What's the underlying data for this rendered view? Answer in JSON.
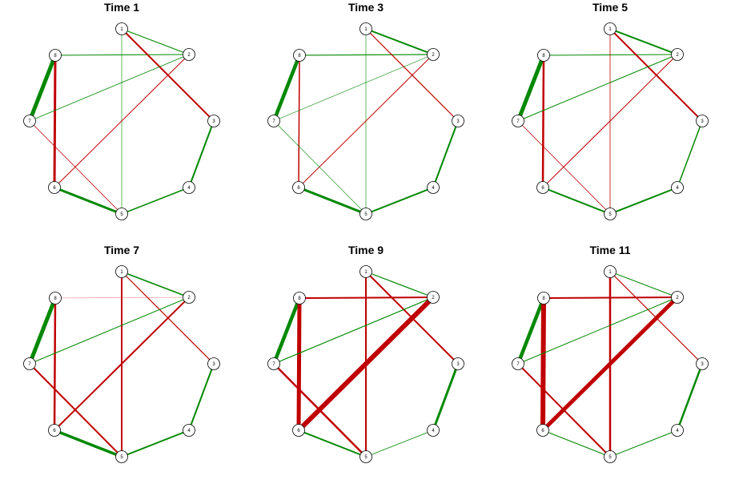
{
  "colors": {
    "positive": "#008800",
    "negative": "#c00000",
    "node_fill": "#ffffff",
    "node_stroke": "#000000"
  },
  "nodes": [
    "1",
    "2",
    "3",
    "4",
    "5",
    "6",
    "7",
    "8"
  ],
  "panels": [
    {
      "title": "Time 1",
      "edges": [
        {
          "from": "8",
          "to": "7",
          "sign": "positive",
          "weight": 5
        },
        {
          "from": "8",
          "to": "6",
          "sign": "negative",
          "weight": 3
        },
        {
          "from": "8",
          "to": "2",
          "sign": "positive",
          "weight": 1
        },
        {
          "from": "1",
          "to": "2",
          "sign": "positive",
          "weight": 1.2
        },
        {
          "from": "1",
          "to": "3",
          "sign": "negative",
          "weight": 2
        },
        {
          "from": "1",
          "to": "5",
          "sign": "positive",
          "weight": 0.6
        },
        {
          "from": "2",
          "to": "7",
          "sign": "positive",
          "weight": 0.8
        },
        {
          "from": "2",
          "to": "6",
          "sign": "negative",
          "weight": 1
        },
        {
          "from": "3",
          "to": "4",
          "sign": "positive",
          "weight": 2
        },
        {
          "from": "4",
          "to": "5",
          "sign": "positive",
          "weight": 1.5
        },
        {
          "from": "5",
          "to": "6",
          "sign": "positive",
          "weight": 3
        },
        {
          "from": "7",
          "to": "5",
          "sign": "negative",
          "weight": 0.8
        }
      ]
    },
    {
      "title": "Time 3",
      "edges": [
        {
          "from": "8",
          "to": "7",
          "sign": "positive",
          "weight": 4.5
        },
        {
          "from": "8",
          "to": "6",
          "sign": "negative",
          "weight": 1.5
        },
        {
          "from": "8",
          "to": "2",
          "sign": "positive",
          "weight": 1.2
        },
        {
          "from": "1",
          "to": "2",
          "sign": "positive",
          "weight": 2
        },
        {
          "from": "1",
          "to": "3",
          "sign": "negative",
          "weight": 1.2
        },
        {
          "from": "1",
          "to": "5",
          "sign": "positive",
          "weight": 0.6
        },
        {
          "from": "2",
          "to": "7",
          "sign": "positive",
          "weight": 0.6
        },
        {
          "from": "2",
          "to": "6",
          "sign": "negative",
          "weight": 1
        },
        {
          "from": "3",
          "to": "4",
          "sign": "positive",
          "weight": 2
        },
        {
          "from": "4",
          "to": "5",
          "sign": "positive",
          "weight": 2
        },
        {
          "from": "5",
          "to": "6",
          "sign": "positive",
          "weight": 3
        },
        {
          "from": "7",
          "to": "5",
          "sign": "positive",
          "weight": 0.6
        }
      ]
    },
    {
      "title": "Time 5",
      "edges": [
        {
          "from": "8",
          "to": "7",
          "sign": "positive",
          "weight": 5
        },
        {
          "from": "8",
          "to": "6",
          "sign": "negative",
          "weight": 2.5
        },
        {
          "from": "8",
          "to": "2",
          "sign": "positive",
          "weight": 1
        },
        {
          "from": "1",
          "to": "2",
          "sign": "positive",
          "weight": 2
        },
        {
          "from": "1",
          "to": "3",
          "sign": "negative",
          "weight": 2
        },
        {
          "from": "1",
          "to": "5",
          "sign": "negative",
          "weight": 0.8
        },
        {
          "from": "2",
          "to": "7",
          "sign": "positive",
          "weight": 1
        },
        {
          "from": "2",
          "to": "6",
          "sign": "negative",
          "weight": 1
        },
        {
          "from": "3",
          "to": "4",
          "sign": "positive",
          "weight": 1.5
        },
        {
          "from": "4",
          "to": "5",
          "sign": "positive",
          "weight": 2
        },
        {
          "from": "5",
          "to": "6",
          "sign": "positive",
          "weight": 2
        },
        {
          "from": "7",
          "to": "5",
          "sign": "negative",
          "weight": 0.8
        }
      ]
    },
    {
      "title": "Time 7",
      "edges": [
        {
          "from": "8",
          "to": "7",
          "sign": "positive",
          "weight": 5
        },
        {
          "from": "8",
          "to": "6",
          "sign": "negative",
          "weight": 2.5
        },
        {
          "from": "8",
          "to": "2",
          "sign": "negative",
          "weight": 0.6
        },
        {
          "from": "1",
          "to": "2",
          "sign": "positive",
          "weight": 1.5
        },
        {
          "from": "1",
          "to": "3",
          "sign": "negative",
          "weight": 1.2
        },
        {
          "from": "1",
          "to": "5",
          "sign": "negative",
          "weight": 2
        },
        {
          "from": "2",
          "to": "7",
          "sign": "positive",
          "weight": 1
        },
        {
          "from": "2",
          "to": "6",
          "sign": "negative",
          "weight": 2
        },
        {
          "from": "3",
          "to": "4",
          "sign": "positive",
          "weight": 2
        },
        {
          "from": "4",
          "to": "5",
          "sign": "positive",
          "weight": 2
        },
        {
          "from": "5",
          "to": "6",
          "sign": "positive",
          "weight": 3.5
        },
        {
          "from": "7",
          "to": "5",
          "sign": "negative",
          "weight": 2
        }
      ]
    },
    {
      "title": "Time 9",
      "edges": [
        {
          "from": "8",
          "to": "7",
          "sign": "positive",
          "weight": 4.5
        },
        {
          "from": "8",
          "to": "6",
          "sign": "negative",
          "weight": 5
        },
        {
          "from": "8",
          "to": "2",
          "sign": "negative",
          "weight": 2
        },
        {
          "from": "1",
          "to": "2",
          "sign": "positive",
          "weight": 1.2
        },
        {
          "from": "1",
          "to": "3",
          "sign": "negative",
          "weight": 2
        },
        {
          "from": "1",
          "to": "5",
          "sign": "negative",
          "weight": 2
        },
        {
          "from": "2",
          "to": "7",
          "sign": "positive",
          "weight": 1.2
        },
        {
          "from": "2",
          "to": "6",
          "sign": "negative",
          "weight": 6
        },
        {
          "from": "3",
          "to": "4",
          "sign": "positive",
          "weight": 3
        },
        {
          "from": "4",
          "to": "5",
          "sign": "positive",
          "weight": 0.8
        },
        {
          "from": "5",
          "to": "6",
          "sign": "positive",
          "weight": 2
        },
        {
          "from": "7",
          "to": "5",
          "sign": "negative",
          "weight": 2.5
        }
      ]
    },
    {
      "title": "Time 11",
      "edges": [
        {
          "from": "8",
          "to": "7",
          "sign": "positive",
          "weight": 4.5
        },
        {
          "from": "8",
          "to": "6",
          "sign": "negative",
          "weight": 6
        },
        {
          "from": "8",
          "to": "2",
          "sign": "negative",
          "weight": 2
        },
        {
          "from": "1",
          "to": "2",
          "sign": "positive",
          "weight": 1
        },
        {
          "from": "1",
          "to": "3",
          "sign": "negative",
          "weight": 1.2
        },
        {
          "from": "1",
          "to": "5",
          "sign": "negative",
          "weight": 2.5
        },
        {
          "from": "2",
          "to": "7",
          "sign": "positive",
          "weight": 1
        },
        {
          "from": "2",
          "to": "6",
          "sign": "negative",
          "weight": 5
        },
        {
          "from": "3",
          "to": "4",
          "sign": "positive",
          "weight": 2.5
        },
        {
          "from": "4",
          "to": "5",
          "sign": "positive",
          "weight": 1
        },
        {
          "from": "5",
          "to": "6",
          "sign": "positive",
          "weight": 1.2
        },
        {
          "from": "7",
          "to": "5",
          "sign": "negative",
          "weight": 2
        }
      ]
    }
  ]
}
